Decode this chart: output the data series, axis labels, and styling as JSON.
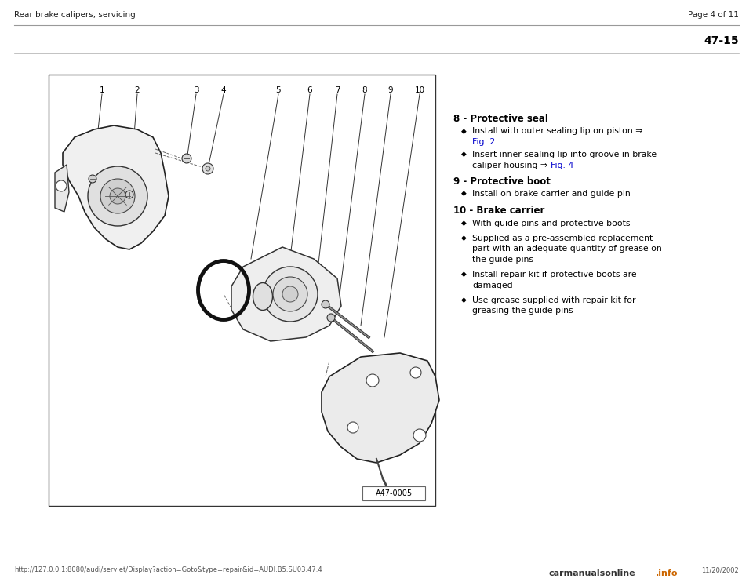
{
  "background_color": "#ffffff",
  "header_left": "Rear brake calipers, servicing",
  "header_right": "Page 4 of 11",
  "page_number": "47-15",
  "footer_url": "http://127.0.0.1:8080/audi/servlet/Display?action=Goto&type=repair&id=AUDI.B5.SU03.47.4",
  "footer_date": "11/20/2002",
  "image_label": "A47-0005",
  "section_8_title": "8 - Protective seal",
  "section_9_title": "9 - Protective boot",
  "section_10_title": "10 - Brake carrier",
  "text_color": "#000000",
  "link_color": "#0000cc",
  "title_fontsize": 8.5,
  "body_fontsize": 7.8,
  "header_fontsize": 7.5,
  "bullet_char": "◆",
  "fig_width": 9.6,
  "fig_height": 7.42,
  "dpi": 100
}
